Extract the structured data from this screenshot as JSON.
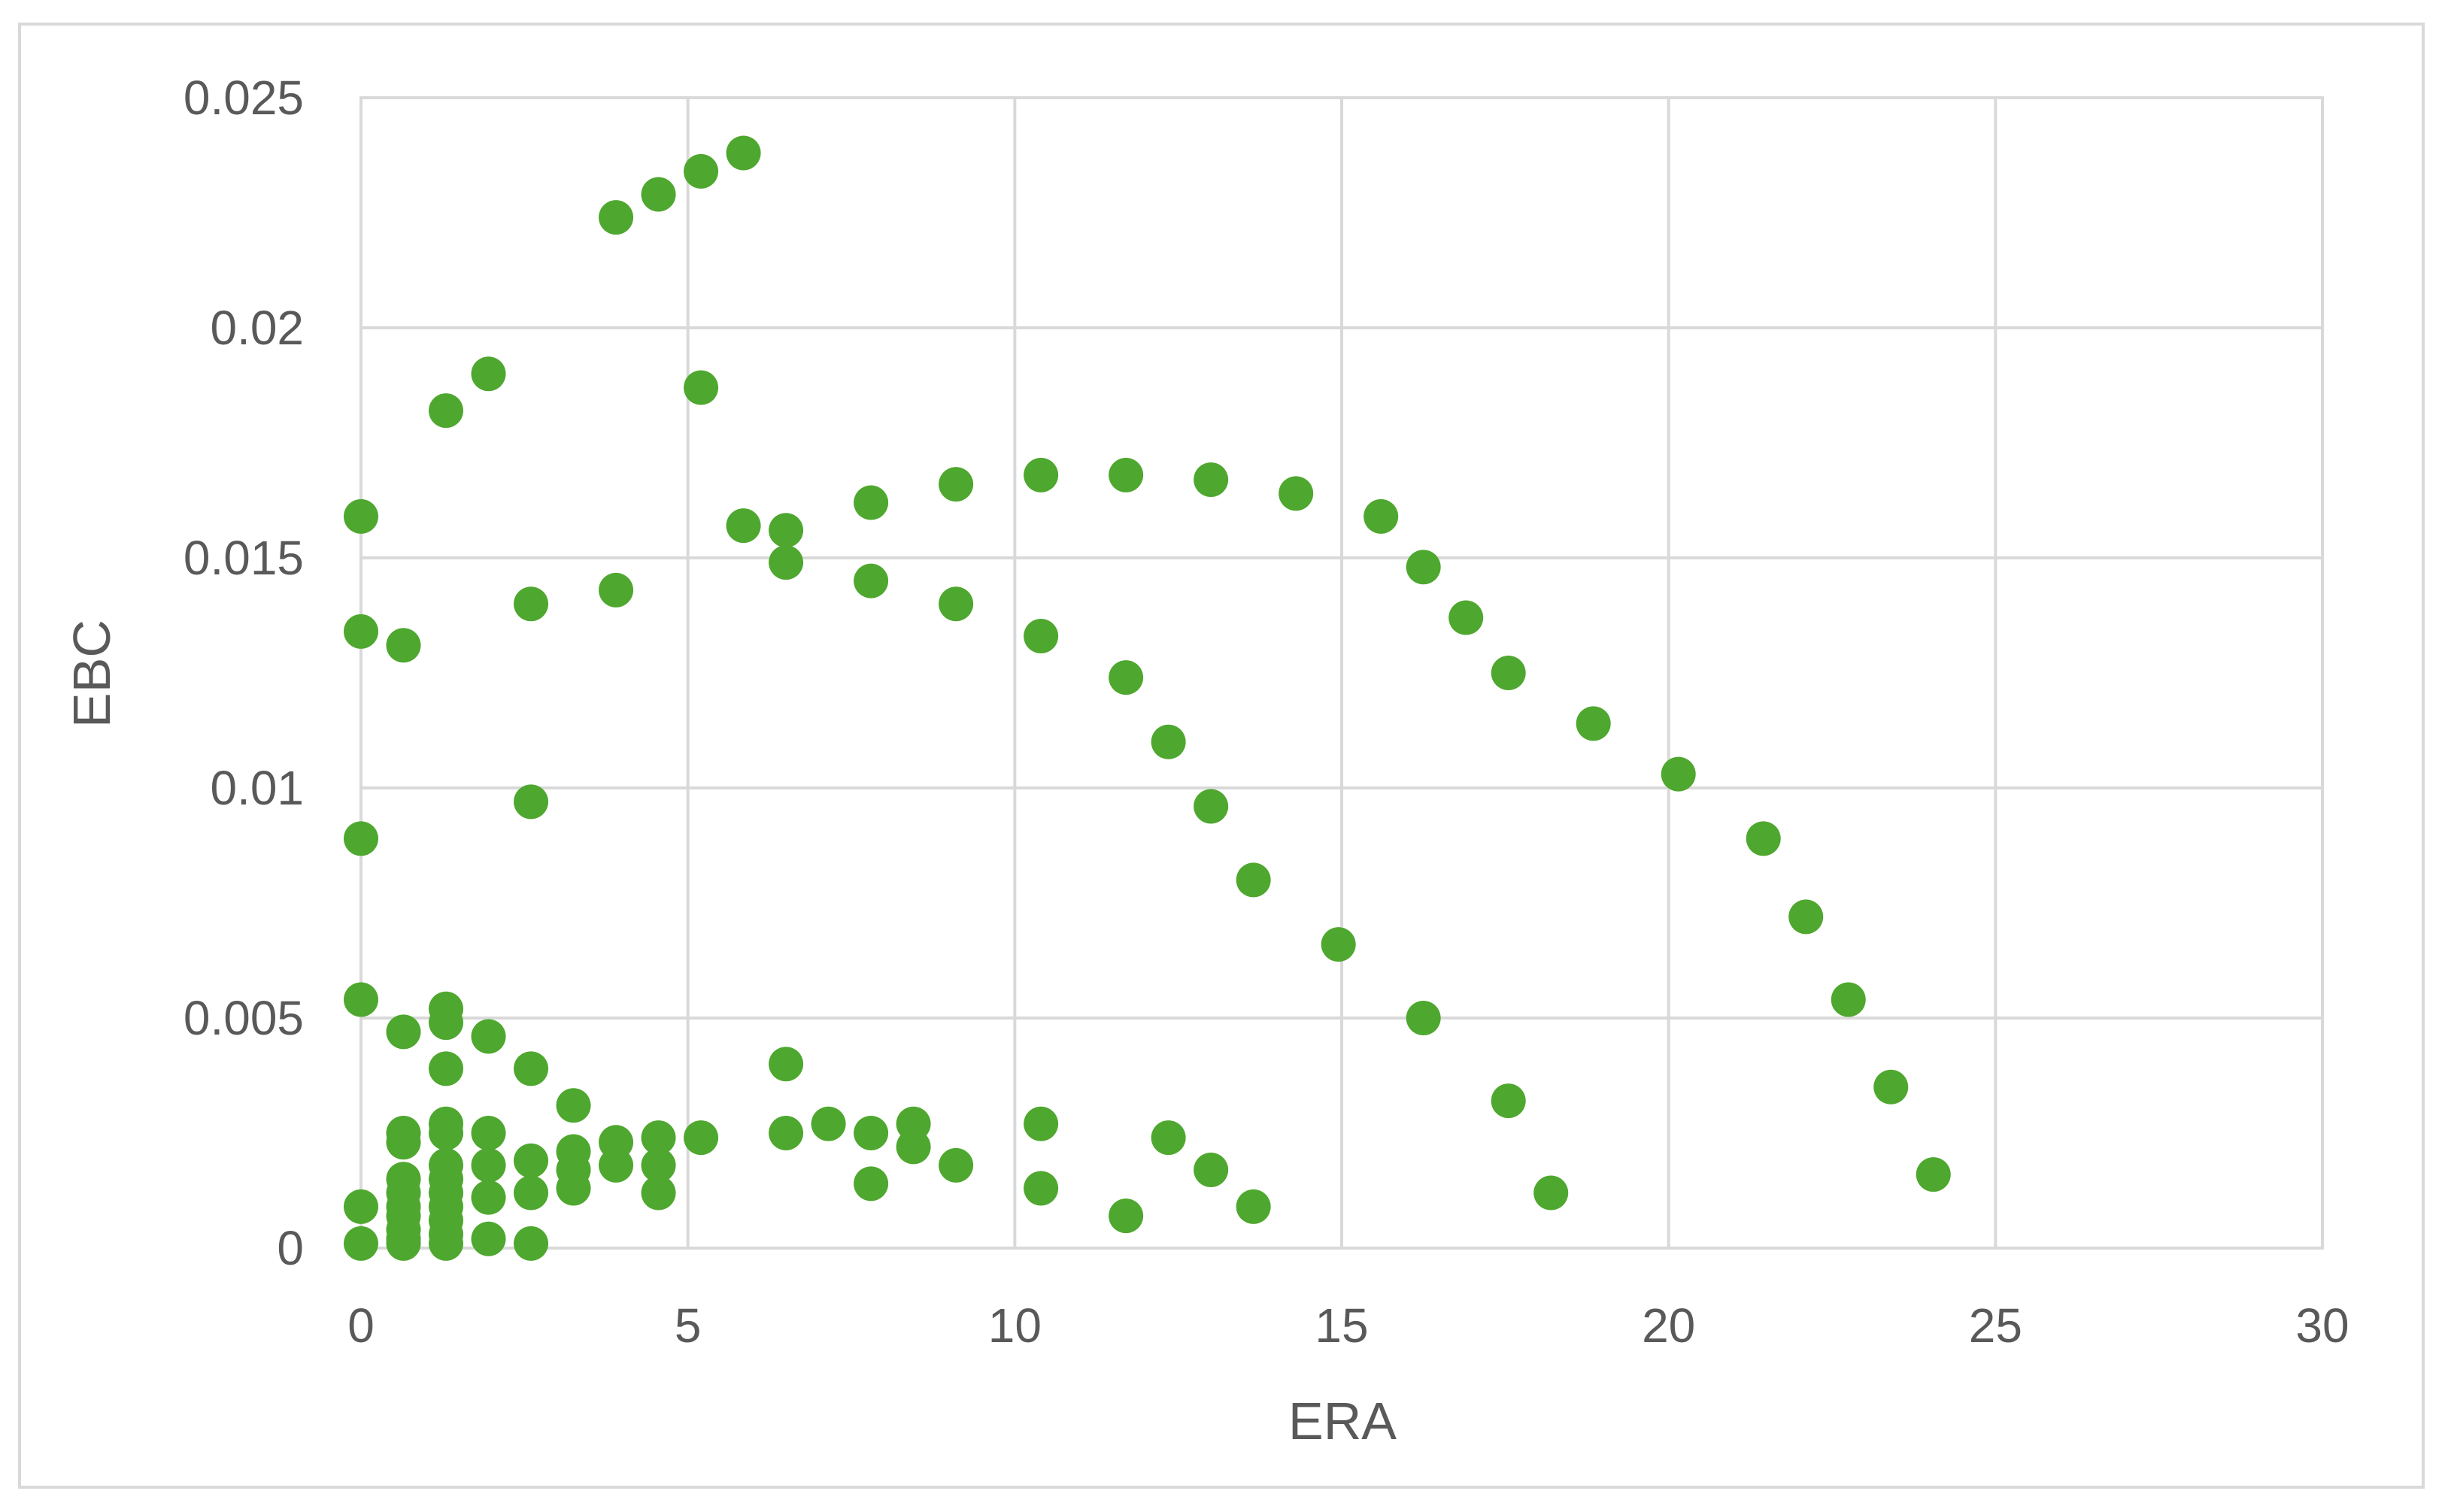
{
  "chart_data": {
    "type": "scatter",
    "title": "",
    "xlabel": "ERA",
    "ylabel": "EBC",
    "xlim": [
      0,
      30
    ],
    "ylim": [
      0,
      0.025
    ],
    "x_ticks": [
      "0",
      "5",
      "10",
      "15",
      "20",
      "25",
      "30"
    ],
    "y_ticks": [
      "0",
      "0.005",
      "0.01",
      "0.015",
      "0.02",
      "0.025"
    ],
    "grid": true,
    "legend": "none",
    "marker_color": "#4ea72e",
    "series": [
      {
        "points": [
          [
            0,
            0.0159
          ],
          [
            0,
            0.0134
          ],
          [
            0,
            0.0089
          ],
          [
            0,
            0.0054
          ],
          [
            0,
            0.0009
          ],
          [
            0,
            0.0001
          ],
          [
            0.65,
            0.0131
          ],
          [
            0.65,
            0.0047
          ],
          [
            0.65,
            0.0025
          ],
          [
            0.65,
            0.0023
          ],
          [
            0.65,
            0.0015
          ],
          [
            0.65,
            0.0012
          ],
          [
            0.65,
            0.0009
          ],
          [
            0.65,
            0.0007
          ],
          [
            0.65,
            0.0004
          ],
          [
            0.65,
            0.0002
          ],
          [
            0.65,
            0.0001
          ],
          [
            1.3,
            0.0182
          ],
          [
            1.3,
            0.0052
          ],
          [
            1.3,
            0.0049
          ],
          [
            1.3,
            0.0039
          ],
          [
            1.3,
            0.0027
          ],
          [
            1.3,
            0.0025
          ],
          [
            1.3,
            0.0018
          ],
          [
            1.3,
            0.0015
          ],
          [
            1.3,
            0.0012
          ],
          [
            1.3,
            0.0009
          ],
          [
            1.3,
            0.0006
          ],
          [
            1.3,
            0.0003
          ],
          [
            1.3,
            0.0001
          ],
          [
            1.95,
            0.019
          ],
          [
            1.95,
            0.0046
          ],
          [
            1.95,
            0.0025
          ],
          [
            1.95,
            0.0018
          ],
          [
            1.95,
            0.0011
          ],
          [
            1.95,
            0.0002
          ],
          [
            2.6,
            0.014
          ],
          [
            2.6,
            0.0097
          ],
          [
            2.6,
            0.0039
          ],
          [
            2.6,
            0.0019
          ],
          [
            2.6,
            0.0012
          ],
          [
            2.6,
            0.0001
          ],
          [
            3.25,
            0.0031
          ],
          [
            3.25,
            0.0021
          ],
          [
            3.25,
            0.0017
          ],
          [
            3.25,
            0.0013
          ],
          [
            3.9,
            0.0224
          ],
          [
            3.9,
            0.0143
          ],
          [
            3.9,
            0.0023
          ],
          [
            3.9,
            0.0018
          ],
          [
            4.55,
            0.0229
          ],
          [
            4.55,
            0.0024
          ],
          [
            4.55,
            0.0018
          ],
          [
            4.55,
            0.0012
          ],
          [
            5.2,
            0.0234
          ],
          [
            5.2,
            0.0187
          ],
          [
            5.2,
            0.0024
          ],
          [
            5.85,
            0.0238
          ],
          [
            5.85,
            0.0157
          ],
          [
            6.5,
            0.0156
          ],
          [
            6.5,
            0.0149
          ],
          [
            6.5,
            0.004
          ],
          [
            6.5,
            0.0025
          ],
          [
            7.15,
            0.0027
          ],
          [
            7.8,
            0.0162
          ],
          [
            7.8,
            0.0145
          ],
          [
            7.8,
            0.0025
          ],
          [
            7.8,
            0.0014
          ],
          [
            8.45,
            0.0027
          ],
          [
            8.45,
            0.0022
          ],
          [
            9.1,
            0.0166
          ],
          [
            9.1,
            0.014
          ],
          [
            9.1,
            0.0018
          ],
          [
            10.4,
            0.0168
          ],
          [
            10.4,
            0.0133
          ],
          [
            10.4,
            0.0027
          ],
          [
            10.4,
            0.0013
          ],
          [
            11.7,
            0.0168
          ],
          [
            11.7,
            0.0124
          ],
          [
            11.7,
            0.0007
          ],
          [
            12.35,
            0.011
          ],
          [
            12.35,
            0.0024
          ],
          [
            13,
            0.0167
          ],
          [
            13,
            0.0096
          ],
          [
            13,
            0.0017
          ],
          [
            13.65,
            0.008
          ],
          [
            13.65,
            0.0009
          ],
          [
            14.3,
            0.0164
          ],
          [
            14.95,
            0.0066
          ],
          [
            15.6,
            0.0159
          ],
          [
            16.25,
            0.0148
          ],
          [
            16.25,
            0.005
          ],
          [
            16.9,
            0.0137
          ],
          [
            17.55,
            0.0125
          ],
          [
            17.55,
            0.0032
          ],
          [
            18.2,
            0.0012
          ],
          [
            18.85,
            0.0114
          ],
          [
            20.15,
            0.0103
          ],
          [
            21.45,
            0.0089
          ],
          [
            22.1,
            0.0072
          ],
          [
            22.75,
            0.0054
          ],
          [
            23.4,
            0.0035
          ],
          [
            24.05,
            0.0016
          ]
        ]
      }
    ]
  }
}
